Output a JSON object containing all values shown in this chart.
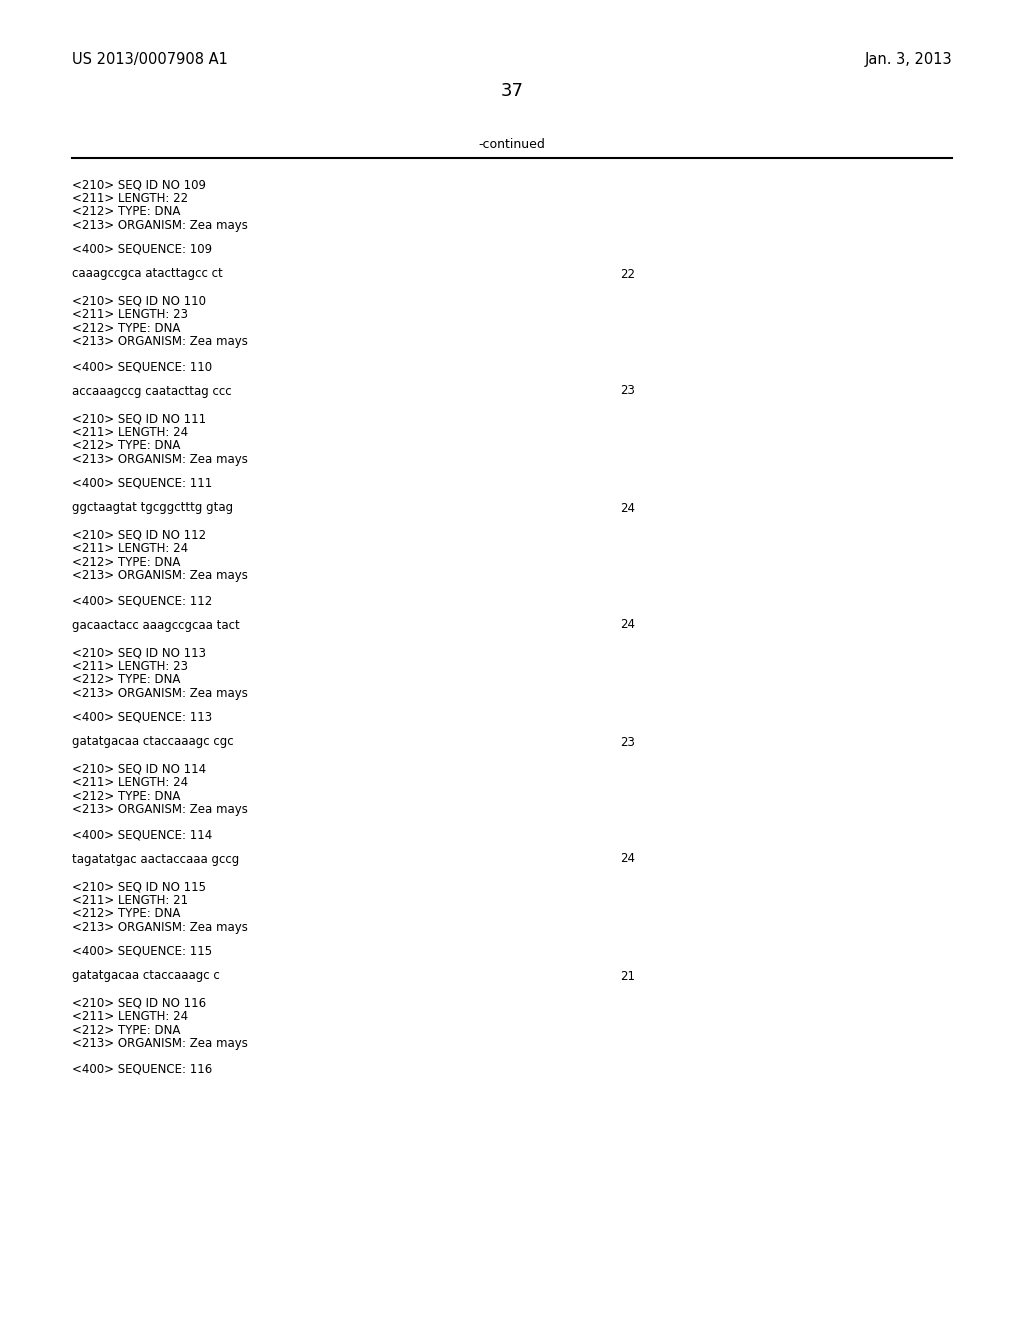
{
  "bg_color": "#ffffff",
  "header_left": "US 2013/0007908 A1",
  "header_right": "Jan. 3, 2013",
  "page_number": "37",
  "continued_label": "-continued",
  "monospace_font": "Courier New",
  "header_font_size": 10.5,
  "page_num_font_size": 13,
  "body_font_size": 8.5,
  "entries": [
    {
      "seq_id": "109",
      "length": "22",
      "type": "DNA",
      "organism": "Zea mays",
      "sequence_num": "109",
      "sequence": "caaagccgca atacttagcc ct",
      "seq_length_val": "22"
    },
    {
      "seq_id": "110",
      "length": "23",
      "type": "DNA",
      "organism": "Zea mays",
      "sequence_num": "110",
      "sequence": "accaaagccg caatacttag ccc",
      "seq_length_val": "23"
    },
    {
      "seq_id": "111",
      "length": "24",
      "type": "DNA",
      "organism": "Zea mays",
      "sequence_num": "111",
      "sequence": "ggctaagtat tgcggctttg gtag",
      "seq_length_val": "24"
    },
    {
      "seq_id": "112",
      "length": "24",
      "type": "DNA",
      "organism": "Zea mays",
      "sequence_num": "112",
      "sequence": "gacaactacc aaagccgcaa tact",
      "seq_length_val": "24"
    },
    {
      "seq_id": "113",
      "length": "23",
      "type": "DNA",
      "organism": "Zea mays",
      "sequence_num": "113",
      "sequence": "gatatgacaa ctaccaaagc cgc",
      "seq_length_val": "23"
    },
    {
      "seq_id": "114",
      "length": "24",
      "type": "DNA",
      "organism": "Zea mays",
      "sequence_num": "114",
      "sequence": "tagatatgac aactaccaaa gccg",
      "seq_length_val": "24"
    },
    {
      "seq_id": "115",
      "length": "21",
      "type": "DNA",
      "organism": "Zea mays",
      "sequence_num": "115",
      "sequence": "gatatgacaa ctaccaaagc c",
      "seq_length_val": "21"
    },
    {
      "seq_id": "116",
      "length": "24",
      "type": "DNA",
      "organism": "Zea mays",
      "sequence_num": "116",
      "sequence": null,
      "seq_length_val": null
    }
  ]
}
